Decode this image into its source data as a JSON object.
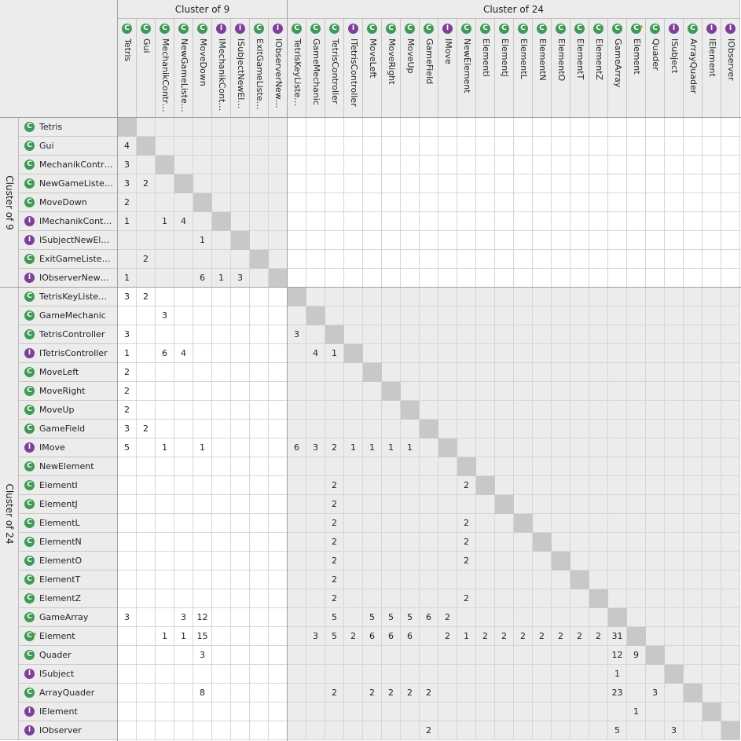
{
  "clusters": [
    {
      "label": "Cluster of 9",
      "size": 9
    },
    {
      "label": "Cluster of 24",
      "size": 24
    }
  ],
  "icon_colors": {
    "class": "#3f9a55",
    "interface": "#7d3f99"
  },
  "icon_letters": {
    "class": "C",
    "interface": "I"
  },
  "nodes": [
    {
      "name": "Tetris",
      "col_label": "Tetris",
      "row_label": "Tetris",
      "kind": "class"
    },
    {
      "name": "Gui",
      "col_label": "Gui",
      "row_label": "Gui",
      "kind": "class"
    },
    {
      "name": "MechanikController",
      "col_label": "MechanikContr…",
      "row_label": "MechanikContr…",
      "kind": "class"
    },
    {
      "name": "NewGameListener",
      "col_label": "NewGameListe…",
      "row_label": "NewGameListe…",
      "kind": "class"
    },
    {
      "name": "MoveDown",
      "col_label": "MoveDown",
      "row_label": "MoveDown",
      "kind": "class"
    },
    {
      "name": "IMechanikController",
      "col_label": "IMechanikCont…",
      "row_label": "IMechanikCont…",
      "kind": "interface"
    },
    {
      "name": "ISubjectNewElement",
      "col_label": "ISubjectNewEl…",
      "row_label": "ISubjectNewEl…",
      "kind": "interface"
    },
    {
      "name": "ExitGameListener",
      "col_label": "ExitGameListe…",
      "row_label": "ExitGameListe…",
      "kind": "class"
    },
    {
      "name": "IObserverNewElement",
      "col_label": "IObserverNew…",
      "row_label": "IObserverNew…",
      "kind": "interface"
    },
    {
      "name": "TetrisKeyListener",
      "col_label": "TetrisKeyListe…",
      "row_label": "TetrisKeyListe…",
      "kind": "class"
    },
    {
      "name": "GameMechanic",
      "col_label": "GameMechanic",
      "row_label": "GameMechanic",
      "kind": "class"
    },
    {
      "name": "TetrisController",
      "col_label": "TetrisController",
      "row_label": "TetrisController",
      "kind": "class"
    },
    {
      "name": "ITetrisController",
      "col_label": "ITetrisController",
      "row_label": "ITetrisController",
      "kind": "interface"
    },
    {
      "name": "MoveLeft",
      "col_label": "MoveLeft",
      "row_label": "MoveLeft",
      "kind": "class"
    },
    {
      "name": "MoveRight",
      "col_label": "MoveRight",
      "row_label": "MoveRight",
      "kind": "class"
    },
    {
      "name": "MoveUp",
      "col_label": "MoveUp",
      "row_label": "MoveUp",
      "kind": "class"
    },
    {
      "name": "GameField",
      "col_label": "GameField",
      "row_label": "GameField",
      "kind": "class"
    },
    {
      "name": "IMove",
      "col_label": "IMove",
      "row_label": "IMove",
      "kind": "interface"
    },
    {
      "name": "NewElement",
      "col_label": "NewElement",
      "row_label": "NewElement",
      "kind": "class"
    },
    {
      "name": "ElementI",
      "col_label": "ElementI",
      "row_label": "ElementI",
      "kind": "class"
    },
    {
      "name": "ElementJ",
      "col_label": "ElementJ",
      "row_label": "ElementJ",
      "kind": "class"
    },
    {
      "name": "ElementL",
      "col_label": "ElementL",
      "row_label": "ElementL",
      "kind": "class"
    },
    {
      "name": "ElementN",
      "col_label": "ElementN",
      "row_label": "ElementN",
      "kind": "class"
    },
    {
      "name": "ElementO",
      "col_label": "ElementO",
      "row_label": "ElementO",
      "kind": "class"
    },
    {
      "name": "ElementT",
      "col_label": "ElementT",
      "row_label": "ElementT",
      "kind": "class"
    },
    {
      "name": "ElementZ",
      "col_label": "ElementZ",
      "row_label": "ElementZ",
      "kind": "class"
    },
    {
      "name": "GameArray",
      "col_label": "GameArray",
      "row_label": "GameArray",
      "kind": "class"
    },
    {
      "name": "Element",
      "col_label": "Element",
      "row_label": "Element",
      "kind": "class",
      "abstract": true
    },
    {
      "name": "Quader",
      "col_label": "Quader",
      "row_label": "Quader",
      "kind": "class"
    },
    {
      "name": "ISubject",
      "col_label": "ISubject",
      "row_label": "ISubject",
      "kind": "interface"
    },
    {
      "name": "ArrayQuader",
      "col_label": "ArrayQuader",
      "row_label": "ArrayQuader",
      "kind": "class"
    },
    {
      "name": "IElement",
      "col_label": "IElement",
      "row_label": "IElement",
      "kind": "interface"
    },
    {
      "name": "IObserver",
      "col_label": "IObserver",
      "row_label": "IObserver",
      "kind": "interface"
    }
  ],
  "matrix": [
    [
      "",
      "",
      "",
      "",
      "",
      "",
      "",
      "",
      "",
      "",
      "",
      "",
      "",
      "",
      "",
      "",
      "",
      "",
      "",
      "",
      "",
      "",
      "",
      "",
      "",
      "",
      "",
      "",
      "",
      "",
      "",
      "",
      ""
    ],
    [
      "4",
      "",
      "",
      "",
      "",
      "",
      "",
      "",
      "",
      "",
      "",
      "",
      "",
      "",
      "",
      "",
      "",
      "",
      "",
      "",
      "",
      "",
      "",
      "",
      "",
      "",
      "",
      "",
      "",
      "",
      "",
      "",
      ""
    ],
    [
      "3",
      "",
      "",
      "",
      "",
      "",
      "",
      "",
      "",
      "",
      "",
      "",
      "",
      "",
      "",
      "",
      "",
      "",
      "",
      "",
      "",
      "",
      "",
      "",
      "",
      "",
      "",
      "",
      "",
      "",
      "",
      "",
      ""
    ],
    [
      "3",
      "2",
      "",
      "",
      "",
      "",
      "",
      "",
      "",
      "",
      "",
      "",
      "",
      "",
      "",
      "",
      "",
      "",
      "",
      "",
      "",
      "",
      "",
      "",
      "",
      "",
      "",
      "",
      "",
      "",
      "",
      "",
      ""
    ],
    [
      "2",
      "",
      "",
      "",
      "",
      "",
      "",
      "",
      "",
      "",
      "",
      "",
      "",
      "",
      "",
      "",
      "",
      "",
      "",
      "",
      "",
      "",
      "",
      "",
      "",
      "",
      "",
      "",
      "",
      "",
      "",
      "",
      ""
    ],
    [
      "1",
      "",
      "1",
      "4",
      "",
      "",
      "",
      "",
      "",
      "",
      "",
      "",
      "",
      "",
      "",
      "",
      "",
      "",
      "",
      "",
      "",
      "",
      "",
      "",
      "",
      "",
      "",
      "",
      "",
      "",
      "",
      "",
      ""
    ],
    [
      "",
      "",
      "",
      "",
      "1",
      "",
      "",
      "",
      "",
      "",
      "",
      "",
      "",
      "",
      "",
      "",
      "",
      "",
      "",
      "",
      "",
      "",
      "",
      "",
      "",
      "",
      "",
      "",
      "",
      "",
      "",
      "",
      ""
    ],
    [
      "",
      "2",
      "",
      "",
      "",
      "",
      "",
      "",
      "",
      "",
      "",
      "",
      "",
      "",
      "",
      "",
      "",
      "",
      "",
      "",
      "",
      "",
      "",
      "",
      "",
      "",
      "",
      "",
      "",
      "",
      "",
      "",
      ""
    ],
    [
      "1",
      "",
      "",
      "",
      "6",
      "1",
      "3",
      "",
      "",
      "",
      "",
      "",
      "",
      "",
      "",
      "",
      "",
      "",
      "",
      "",
      "",
      "",
      "",
      "",
      "",
      "",
      "",
      "",
      "",
      "",
      "",
      "",
      ""
    ],
    [
      "3",
      "2",
      "",
      "",
      "",
      "",
      "",
      "",
      "",
      "",
      "",
      "",
      "",
      "",
      "",
      "",
      "",
      "",
      "",
      "",
      "",
      "",
      "",
      "",
      "",
      "",
      "",
      "",
      "",
      "",
      "",
      "",
      ""
    ],
    [
      "",
      "",
      "3",
      "",
      "",
      "",
      "",
      "",
      "",
      "",
      "",
      "",
      "",
      "",
      "",
      "",
      "",
      "",
      "",
      "",
      "",
      "",
      "",
      "",
      "",
      "",
      "",
      "",
      "",
      "",
      "",
      "",
      ""
    ],
    [
      "3",
      "",
      "",
      "",
      "",
      "",
      "",
      "",
      "",
      "3",
      "",
      "",
      "",
      "",
      "",
      "",
      "",
      "",
      "",
      "",
      "",
      "",
      "",
      "",
      "",
      "",
      "",
      "",
      "",
      "",
      "",
      "",
      ""
    ],
    [
      "1",
      "",
      "6",
      "4",
      "",
      "",
      "",
      "",
      "",
      "",
      "4",
      "1",
      "",
      "",
      "",
      "",
      "",
      "",
      "",
      "",
      "",
      "",
      "",
      "",
      "",
      "",
      "",
      "",
      "",
      "",
      "",
      "",
      ""
    ],
    [
      "2",
      "",
      "",
      "",
      "",
      "",
      "",
      "",
      "",
      "",
      "",
      "",
      "",
      "",
      "",
      "",
      "",
      "",
      "",
      "",
      "",
      "",
      "",
      "",
      "",
      "",
      "",
      "",
      "",
      "",
      "",
      "",
      ""
    ],
    [
      "2",
      "",
      "",
      "",
      "",
      "",
      "",
      "",
      "",
      "",
      "",
      "",
      "",
      "",
      "",
      "",
      "",
      "",
      "",
      "",
      "",
      "",
      "",
      "",
      "",
      "",
      "",
      "",
      "",
      "",
      "",
      "",
      ""
    ],
    [
      "2",
      "",
      "",
      "",
      "",
      "",
      "",
      "",
      "",
      "",
      "",
      "",
      "",
      "",
      "",
      "",
      "",
      "",
      "",
      "",
      "",
      "",
      "",
      "",
      "",
      "",
      "",
      "",
      "",
      "",
      "",
      "",
      ""
    ],
    [
      "3",
      "2",
      "",
      "",
      "",
      "",
      "",
      "",
      "",
      "",
      "",
      "",
      "",
      "",
      "",
      "",
      "",
      "",
      "",
      "",
      "",
      "",
      "",
      "",
      "",
      "",
      "",
      "",
      "",
      "",
      "",
      "",
      ""
    ],
    [
      "5",
      "",
      "1",
      "",
      "1",
      "",
      "",
      "",
      "",
      "6",
      "3",
      "2",
      "1",
      "1",
      "1",
      "1",
      "",
      "",
      "",
      "",
      "",
      "",
      "",
      "",
      "",
      "",
      "",
      "",
      "",
      "",
      "",
      "",
      ""
    ],
    [
      "",
      "",
      "",
      "",
      "",
      "",
      "",
      "",
      "",
      "",
      "",
      "",
      "",
      "",
      "",
      "",
      "",
      "",
      "",
      "",
      "",
      "",
      "",
      "",
      "",
      "",
      "",
      "",
      "",
      "",
      "",
      "",
      ""
    ],
    [
      "",
      "",
      "",
      "",
      "",
      "",
      "",
      "",
      "",
      "",
      "",
      "2",
      "",
      "",
      "",
      "",
      "",
      "",
      "2",
      "",
      "",
      "",
      "",
      "",
      "",
      "",
      "",
      "",
      "",
      "",
      "",
      "",
      ""
    ],
    [
      "",
      "",
      "",
      "",
      "",
      "",
      "",
      "",
      "",
      "",
      "",
      "2",
      "",
      "",
      "",
      "",
      "",
      "",
      "",
      "",
      "",
      "",
      "",
      "",
      "",
      "",
      "",
      "",
      "",
      "",
      "",
      "",
      ""
    ],
    [
      "",
      "",
      "",
      "",
      "",
      "",
      "",
      "",
      "",
      "",
      "",
      "2",
      "",
      "",
      "",
      "",
      "",
      "",
      "2",
      "",
      "",
      "",
      "",
      "",
      "",
      "",
      "",
      "",
      "",
      "",
      "",
      "",
      ""
    ],
    [
      "",
      "",
      "",
      "",
      "",
      "",
      "",
      "",
      "",
      "",
      "",
      "2",
      "",
      "",
      "",
      "",
      "",
      "",
      "2",
      "",
      "",
      "",
      "",
      "",
      "",
      "",
      "",
      "",
      "",
      "",
      "",
      "",
      ""
    ],
    [
      "",
      "",
      "",
      "",
      "",
      "",
      "",
      "",
      "",
      "",
      "",
      "2",
      "",
      "",
      "",
      "",
      "",
      "",
      "2",
      "",
      "",
      "",
      "",
      "",
      "",
      "",
      "",
      "",
      "",
      "",
      "",
      "",
      ""
    ],
    [
      "",
      "",
      "",
      "",
      "",
      "",
      "",
      "",
      "",
      "",
      "",
      "2",
      "",
      "",
      "",
      "",
      "",
      "",
      "",
      "",
      "",
      "",
      "",
      "",
      "",
      "",
      "",
      "",
      "",
      "",
      "",
      "",
      ""
    ],
    [
      "",
      "",
      "",
      "",
      "",
      "",
      "",
      "",
      "",
      "",
      "",
      "2",
      "",
      "",
      "",
      "",
      "",
      "",
      "2",
      "",
      "",
      "",
      "",
      "",
      "",
      "",
      "",
      "",
      "",
      "",
      "",
      "",
      ""
    ],
    [
      "3",
      "",
      "",
      "3",
      "12",
      "",
      "",
      "",
      "",
      "",
      "",
      "5",
      "",
      "5",
      "5",
      "5",
      "6",
      "2",
      "",
      "",
      "",
      "",
      "",
      "",
      "",
      "",
      "",
      "",
      "",
      "",
      "",
      "",
      ""
    ],
    [
      "",
      "",
      "1",
      "1",
      "15",
      "",
      "",
      "",
      "",
      "",
      "3",
      "5",
      "2",
      "6",
      "6",
      "6",
      "",
      "2",
      "1",
      "2",
      "2",
      "2",
      "2",
      "2",
      "2",
      "2",
      "31",
      "",
      "",
      "",
      "",
      "",
      ""
    ],
    [
      "",
      "",
      "",
      "",
      "3",
      "",
      "",
      "",
      "",
      "",
      "",
      "",
      "",
      "",
      "",
      "",
      "",
      "",
      "",
      "",
      "",
      "",
      "",
      "",
      "",
      "",
      "12",
      "9",
      "",
      "",
      "",
      "",
      ""
    ],
    [
      "",
      "",
      "",
      "",
      "",
      "",
      "",
      "",
      "",
      "",
      "",
      "",
      "",
      "",
      "",
      "",
      "",
      "",
      "",
      "",
      "",
      "",
      "",
      "",
      "",
      "",
      "1",
      "",
      "",
      "",
      "",
      "",
      ""
    ],
    [
      "",
      "",
      "",
      "",
      "8",
      "",
      "",
      "",
      "",
      "",
      "",
      "2",
      "",
      "2",
      "2",
      "2",
      "2",
      "",
      "",
      "",
      "",
      "",
      "",
      "",
      "",
      "",
      "23",
      "",
      "3",
      "",
      "",
      "",
      ""
    ],
    [
      "",
      "",
      "",
      "",
      "",
      "",
      "",
      "",
      "",
      "",
      "",
      "",
      "",
      "",
      "",
      "",
      "",
      "",
      "",
      "",
      "",
      "",
      "",
      "",
      "",
      "",
      "",
      "1",
      "",
      "",
      "",
      "",
      ""
    ],
    [
      "",
      "",
      "",
      "",
      "",
      "",
      "",
      "",
      "",
      "",
      "",
      "",
      "",
      "",
      "",
      "",
      "2",
      "",
      "",
      "",
      "",
      "",
      "",
      "",
      "",
      "",
      "5",
      "",
      "",
      "3",
      "",
      "",
      ""
    ]
  ]
}
